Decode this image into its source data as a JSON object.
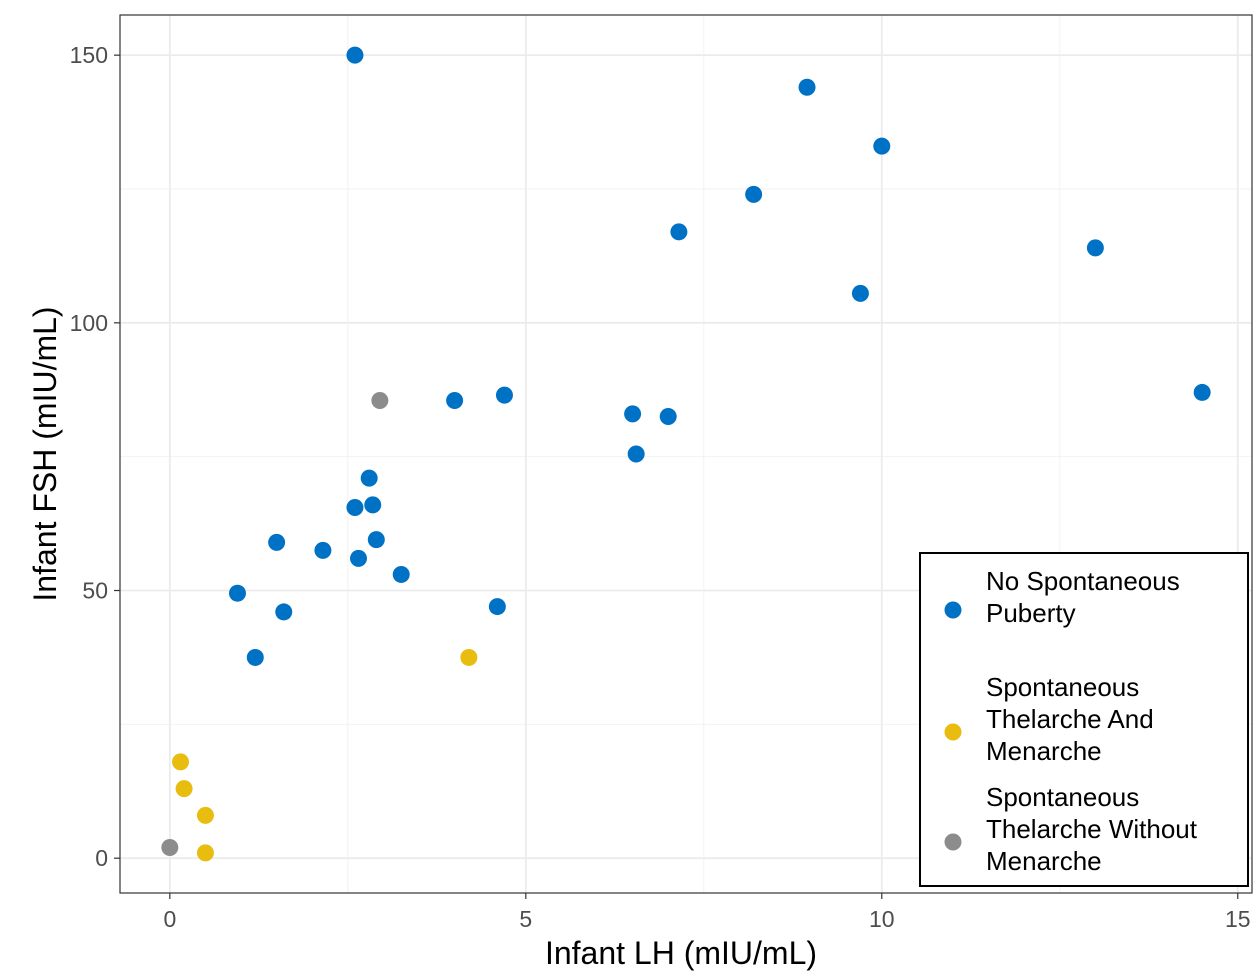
{
  "chart_data": {
    "type": "scatter",
    "xlabel": "Infant LH (mIU/mL)",
    "ylabel": "Infant FSH (mIU/mL)",
    "xlim": [
      -0.7,
      15.2
    ],
    "ylim": [
      -6.5,
      157.5
    ],
    "x_ticks": [
      0,
      5,
      10,
      15
    ],
    "y_ticks": [
      0,
      50,
      100,
      150
    ],
    "x_minor": [
      2.5,
      7.5,
      12.5
    ],
    "y_minor": [
      25,
      75,
      125
    ],
    "grid": true,
    "legend_position": "bottom-right",
    "series": [
      {
        "name": "No Spontaneous Puberty",
        "color": "#0072c6",
        "points": [
          {
            "x": 2.6,
            "y": 150
          },
          {
            "x": 8.95,
            "y": 144
          },
          {
            "x": 10.0,
            "y": 133
          },
          {
            "x": 8.2,
            "y": 124
          },
          {
            "x": 7.15,
            "y": 117
          },
          {
            "x": 13.0,
            "y": 114
          },
          {
            "x": 9.7,
            "y": 105.5
          },
          {
            "x": 14.5,
            "y": 87
          },
          {
            "x": 4.7,
            "y": 86.5
          },
          {
            "x": 4.0,
            "y": 85.5
          },
          {
            "x": 6.5,
            "y": 83
          },
          {
            "x": 7.0,
            "y": 82.5
          },
          {
            "x": 6.55,
            "y": 75.5
          },
          {
            "x": 2.8,
            "y": 71
          },
          {
            "x": 2.6,
            "y": 65.5
          },
          {
            "x": 2.85,
            "y": 66
          },
          {
            "x": 1.5,
            "y": 59
          },
          {
            "x": 2.9,
            "y": 59.5
          },
          {
            "x": 2.15,
            "y": 57.5
          },
          {
            "x": 2.65,
            "y": 56
          },
          {
            "x": 3.25,
            "y": 53
          },
          {
            "x": 0.95,
            "y": 49.5
          },
          {
            "x": 1.6,
            "y": 46
          },
          {
            "x": 4.6,
            "y": 47
          },
          {
            "x": 1.2,
            "y": 37.5
          }
        ]
      },
      {
        "name": "Spontaneous Thelarche And Menarche",
        "color": "#e8bd0f",
        "points": [
          {
            "x": 4.2,
            "y": 37.5
          },
          {
            "x": 0.15,
            "y": 18
          },
          {
            "x": 0.2,
            "y": 13
          },
          {
            "x": 0.5,
            "y": 8
          },
          {
            "x": 0.5,
            "y": 1
          }
        ]
      },
      {
        "name": "Spontaneous Thelarche Without Menarche",
        "color": "#8c8c8c",
        "points": [
          {
            "x": 2.95,
            "y": 85.5
          },
          {
            "x": 0.0,
            "y": 2
          }
        ]
      }
    ],
    "legend": [
      {
        "lines": [
          "No Spontaneous",
          "Puberty"
        ],
        "color": "#0072c6"
      },
      {
        "lines": [
          "Spontaneous",
          "Thelarche And",
          "Menarche"
        ],
        "color": "#e8bd0f"
      },
      {
        "lines": [
          "Spontaneous",
          "Thelarche Without",
          "Menarche"
        ],
        "color": "#8c8c8c"
      }
    ]
  }
}
